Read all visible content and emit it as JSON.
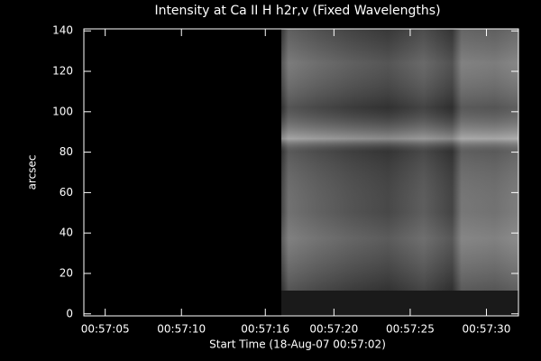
{
  "chart_data": {
    "type": "image",
    "title": "Intensity at Ca II H h2r,v (Fixed Wavelengths)",
    "x_label": "Start Time (18-Aug-07 00:57:02)",
    "y_label": "arcsec",
    "xlim": [
      3.6,
      32.1
    ],
    "xticks": [
      {
        "value": 5,
        "label": "00:57:05"
      },
      {
        "value": 10,
        "label": "00:57:10"
      },
      {
        "value": 15.5,
        "label": "00:57:16"
      },
      {
        "value": 20,
        "label": "00:57:20"
      },
      {
        "value": 25,
        "label": "00:57:25"
      },
      {
        "value": 30,
        "label": "00:57:30"
      }
    ],
    "ylim": [
      -1,
      141
    ],
    "yticks": [
      0,
      20,
      40,
      60,
      80,
      100,
      120,
      140
    ]
  }
}
